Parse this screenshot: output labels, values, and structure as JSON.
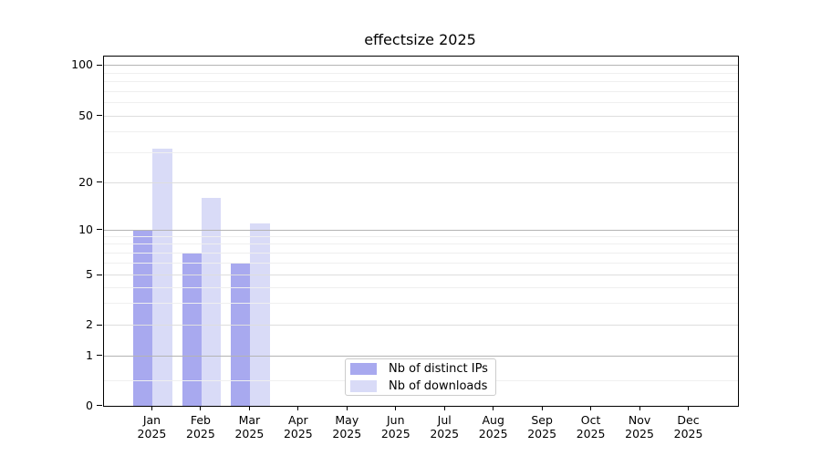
{
  "chart_data": {
    "type": "bar",
    "title": "effectsize 2025",
    "categories": [
      "Jan 2025",
      "Feb 2025",
      "Mar 2025",
      "Apr 2025",
      "May 2025",
      "Jun 2025",
      "Jul 2025",
      "Aug 2025",
      "Sep 2025",
      "Oct 2025",
      "Nov 2025",
      "Dec 2025"
    ],
    "series": [
      {
        "name": "Nb of distinct IPs",
        "color": "#a8a9ef",
        "values": [
          10,
          7,
          6,
          null,
          null,
          null,
          null,
          null,
          null,
          null,
          null,
          null
        ]
      },
      {
        "name": "Nb of downloads",
        "color": "#d9dbf7",
        "values": [
          32,
          16,
          11,
          null,
          null,
          null,
          null,
          null,
          null,
          null,
          null,
          null
        ]
      }
    ],
    "y_axis": {
      "scale": "log",
      "tick_labels": [
        0,
        1,
        2,
        5,
        10,
        20,
        50,
        100
      ],
      "minor_gridlines": [
        0.5,
        3,
        4,
        6,
        7,
        8,
        9,
        30,
        40,
        60,
        70,
        80,
        90
      ],
      "range": [
        0,
        113
      ]
    },
    "legend_position": "lower center",
    "grid": true,
    "bar_group": "two bars per month, IPs left of tick, downloads right of tick"
  }
}
